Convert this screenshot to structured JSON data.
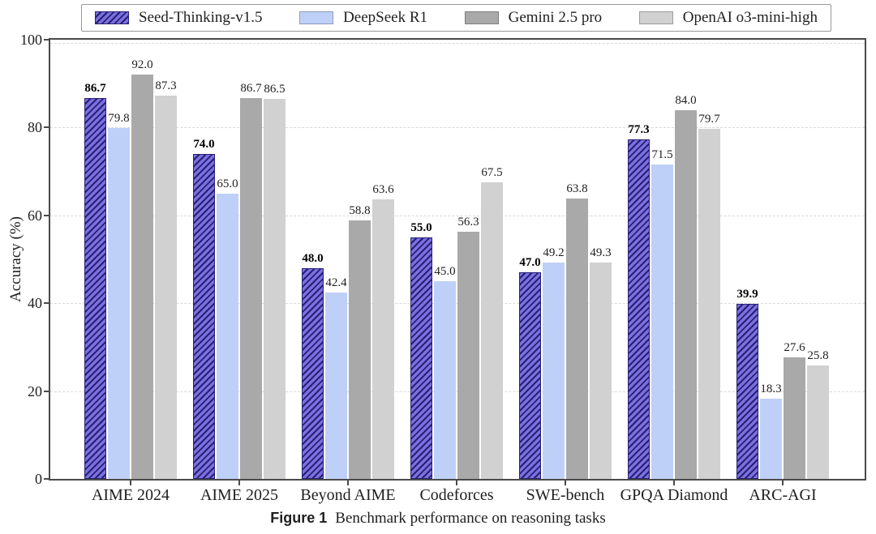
{
  "chart_data": {
    "type": "bar",
    "title": "",
    "xlabel": "",
    "ylabel": "Accuracy (%)",
    "ylim": [
      0,
      100
    ],
    "yticks": [
      0,
      20,
      40,
      60,
      80,
      100
    ],
    "grid": "horizontal dashed gridlines at each y tick",
    "legend_position": "top, horizontal boxed row above plot",
    "categories": [
      "AIME 2024",
      "AIME 2025",
      "Beyond AIME",
      "Codeforces",
      "SWE-bench",
      "GPQA Diamond",
      "ARC-AGI"
    ],
    "series": [
      {
        "name": "Seed-Thinking-v1.5",
        "color": "#7c6fe0",
        "hatch": "diagonal-forward-slash",
        "stripe_color": "#262173",
        "edge_color": "#262173",
        "bold_value_labels": true,
        "values": [
          86.7,
          74.0,
          48.0,
          55.0,
          47.0,
          77.3,
          39.9
        ]
      },
      {
        "name": "DeepSeek R1",
        "color": "#bfd0f8",
        "hatch": null,
        "values": [
          79.8,
          65.0,
          42.4,
          45.0,
          49.2,
          71.5,
          18.3
        ]
      },
      {
        "name": "Gemini 2.5 pro",
        "color": "#a9a9a9",
        "hatch": null,
        "values": [
          92.0,
          86.7,
          58.8,
          56.3,
          63.8,
          84.0,
          27.6
        ]
      },
      {
        "name": "OpenAI o3-mini-high",
        "color": "#d1d1d1",
        "hatch": null,
        "values": [
          87.3,
          86.5,
          63.6,
          67.5,
          49.3,
          79.7,
          25.8
        ]
      }
    ],
    "value_label_format": "one decimal place shown above each bar"
  },
  "caption": {
    "figure_label": "Figure 1",
    "text": "Benchmark performance on reasoning tasks"
  },
  "colors": {
    "spine": "#4a4a4a",
    "gridline": "#d9d9d9",
    "background": "#ffffff"
  }
}
